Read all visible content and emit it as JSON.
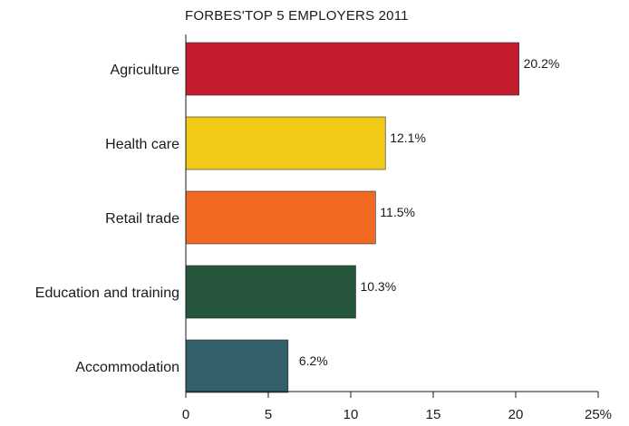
{
  "chart_data": {
    "type": "bar",
    "orientation": "horizontal",
    "title": "FORBES'TOP 5 EMPLOYERS 2011",
    "xlabel": "",
    "ylabel": "",
    "categories": [
      "Agriculture",
      "Health care",
      "Retail trade",
      "Education and training",
      "Accommodation"
    ],
    "values": [
      20.2,
      12.1,
      11.5,
      10.3,
      6.2
    ],
    "data_labels": [
      "20.2%",
      "12.1%",
      "11.5%",
      "10.3%",
      "6.2%"
    ],
    "colors": [
      "#c41e2e",
      "#f1c917",
      "#f26a22",
      "#25553a",
      "#33606a"
    ],
    "xlim": [
      0,
      25
    ],
    "xticks": [
      0,
      5,
      10,
      15,
      20,
      25
    ],
    "xtick_labels": [
      "0",
      "5",
      "10",
      "15",
      "20",
      "25%"
    ],
    "grid": false,
    "legend": "none"
  }
}
